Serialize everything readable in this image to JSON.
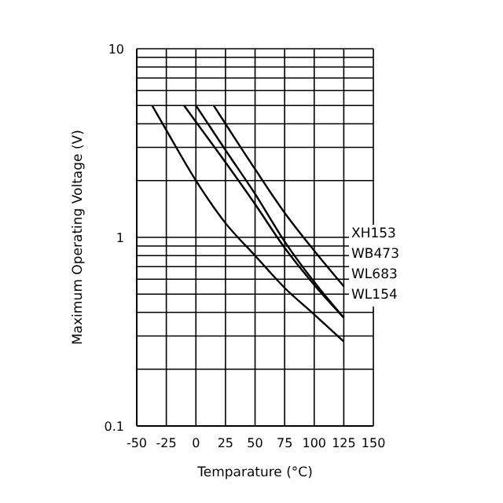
{
  "chart_data": {
    "type": "line",
    "xlabel": "Temparature (°C)",
    "ylabel": "Maximum Operating Voltage (V)",
    "log": "y",
    "grid": true,
    "legend": "right",
    "marker": "none",
    "line_style": "solid",
    "xlim": [
      -50,
      150
    ],
    "xticks": [
      -50,
      -25,
      0,
      25,
      50,
      75,
      100,
      125,
      150
    ],
    "ylim": [
      0.1,
      10
    ],
    "yticks": [
      0.1,
      {
        "value": 0.2,
        "label": null
      },
      {
        "value": 0.3,
        "label": null
      },
      {
        "value": 0.4,
        "label": null
      },
      {
        "value": 0.5,
        "label": null
      },
      {
        "value": 0.6,
        "label": null
      },
      {
        "value": 0.7,
        "label": null
      },
      {
        "value": 0.8,
        "label": null
      },
      {
        "value": 0.9,
        "label": null
      },
      1,
      {
        "value": 2,
        "label": null
      },
      {
        "value": 3,
        "label": null
      },
      {
        "value": 4,
        "label": null
      },
      {
        "value": 5,
        "label": null
      },
      {
        "value": 6,
        "label": null
      },
      {
        "value": 7,
        "label": null
      },
      {
        "value": 8,
        "label": null
      },
      {
        "value": 9,
        "label": null
      },
      10
    ],
    "series": [
      {
        "name": "XH153",
        "color": "#000000",
        "x": [
          15,
          25,
          50,
          75,
          100,
          125
        ],
        "values": [
          5,
          4.0,
          2.3,
          1.35,
          0.85,
          0.55
        ]
      },
      {
        "name": "WB473",
        "color": "#000000",
        "x": [
          0,
          25,
          50,
          75,
          100,
          125
        ],
        "values": [
          5,
          2.9,
          1.7,
          0.95,
          0.58,
          0.375
        ]
      },
      {
        "name": "WL683",
        "color": "#000000",
        "x": [
          -10,
          0,
          25,
          50,
          75,
          100,
          125
        ],
        "values": [
          5,
          4.1,
          2.5,
          1.5,
          0.88,
          0.56,
          0.375
        ]
      },
      {
        "name": "WL154",
        "color": "#000000",
        "x": [
          -37,
          -25,
          0,
          25,
          50,
          75,
          100,
          125
        ],
        "values": [
          5,
          3.7,
          2.0,
          1.19,
          0.8,
          0.54,
          0.39,
          0.28
        ]
      }
    ]
  }
}
